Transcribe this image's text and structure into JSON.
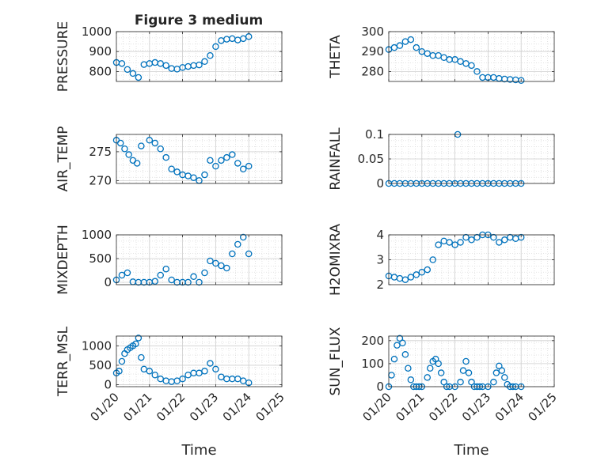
{
  "figure": {
    "title": "Figure 3 medium",
    "marker_color": "#0072BD",
    "x_axis_label": "Time",
    "x_tick_labels": [
      "01/20",
      "01/21",
      "01/22",
      "01/23",
      "01/24",
      "01/25"
    ],
    "grid": "minor dotted + major"
  },
  "chart_data": [
    {
      "type": "scatter",
      "ylabel": "PRESSURE",
      "ylim": [
        750,
        1000
      ],
      "yticks": [
        "800",
        "900",
        "1000"
      ],
      "x": [
        "01/20 00:00",
        "01/20 04:00",
        "01/20 08:00",
        "01/20 12:00",
        "01/20 16:00",
        "01/20 20:00",
        "01/21 00:00",
        "01/21 04:00",
        "01/21 08:00",
        "01/21 12:00",
        "01/21 16:00",
        "01/21 20:00",
        "01/22 00:00",
        "01/22 04:00",
        "01/22 08:00",
        "01/22 12:00",
        "01/22 16:00",
        "01/22 20:00",
        "01/23 00:00",
        "01/23 04:00",
        "01/23 08:00",
        "01/23 12:00",
        "01/23 16:00",
        "01/23 20:00",
        "01/24 00:00"
      ],
      "values": [
        845,
        840,
        810,
        790,
        770,
        835,
        840,
        845,
        840,
        830,
        815,
        812,
        820,
        825,
        830,
        833,
        850,
        880,
        925,
        955,
        962,
        965,
        958,
        965,
        975
      ]
    },
    {
      "type": "scatter",
      "ylabel": "THETA",
      "ylim": [
        275,
        300
      ],
      "yticks": [
        "280",
        "290",
        "300"
      ],
      "x": [
        "01/20 00:00",
        "01/20 04:00",
        "01/20 08:00",
        "01/20 12:00",
        "01/20 16:00",
        "01/20 20:00",
        "01/21 00:00",
        "01/21 04:00",
        "01/21 08:00",
        "01/21 12:00",
        "01/21 16:00",
        "01/21 20:00",
        "01/22 00:00",
        "01/22 04:00",
        "01/22 08:00",
        "01/22 12:00",
        "01/22 16:00",
        "01/22 20:00",
        "01/23 00:00",
        "01/23 04:00",
        "01/23 08:00",
        "01/23 12:00",
        "01/23 16:00",
        "01/23 20:00",
        "01/24 00:00"
      ],
      "values": [
        291,
        292,
        293,
        295,
        296,
        292,
        290,
        289,
        288,
        288,
        287,
        286,
        286,
        285,
        284,
        283,
        280,
        277,
        277,
        277,
        276.5,
        276.2,
        276,
        275.8,
        275.5
      ]
    },
    {
      "type": "scatter",
      "ylabel": "AIR_TEMP",
      "ylim": [
        269.5,
        278
      ],
      "yticks": [
        "270",
        "275"
      ],
      "x": [
        "01/20 00:00",
        "01/20 03:00",
        "01/20 06:00",
        "01/20 09:00",
        "01/20 12:00",
        "01/20 15:00",
        "01/20 18:00",
        "01/21 00:00",
        "01/21 04:00",
        "01/21 08:00",
        "01/21 12:00",
        "01/21 16:00",
        "01/21 20:00",
        "01/22 00:00",
        "01/22 04:00",
        "01/22 08:00",
        "01/22 12:00",
        "01/22 16:00",
        "01/22 20:00",
        "01/23 00:00",
        "01/23 04:00",
        "01/23 08:00",
        "01/23 12:00",
        "01/23 16:00",
        "01/23 20:00",
        "01/24 00:00"
      ],
      "values": [
        277,
        276.5,
        275.5,
        274.5,
        273.5,
        273,
        276,
        277,
        276.5,
        275.5,
        274,
        272,
        271.5,
        271,
        270.8,
        270.5,
        270,
        271,
        273.5,
        272.5,
        273.5,
        274,
        274.5,
        273,
        272,
        272.5
      ]
    },
    {
      "type": "scatter",
      "ylabel": "RAINFALL",
      "ylim": [
        0,
        0.1
      ],
      "yticks": [
        "0",
        "0.05",
        "0.1"
      ],
      "x": [
        "01/20 00:00",
        "01/20 04:00",
        "01/20 08:00",
        "01/20 12:00",
        "01/20 16:00",
        "01/20 20:00",
        "01/21 00:00",
        "01/21 04:00",
        "01/21 08:00",
        "01/21 12:00",
        "01/21 16:00",
        "01/21 20:00",
        "01/22 00:00",
        "01/22 02:00",
        "01/22 04:00",
        "01/22 08:00",
        "01/22 12:00",
        "01/22 16:00",
        "01/22 20:00",
        "01/23 00:00",
        "01/23 04:00",
        "01/23 08:00",
        "01/23 12:00",
        "01/23 16:00",
        "01/23 20:00",
        "01/24 00:00"
      ],
      "values": [
        0,
        0,
        0,
        0,
        0,
        0,
        0,
        0,
        0,
        0,
        0,
        0,
        0,
        0.1,
        0,
        0,
        0,
        0,
        0,
        0,
        0,
        0,
        0,
        0,
        0,
        0
      ]
    },
    {
      "type": "scatter",
      "ylabel": "MIXDEPTH",
      "ylim": [
        -50,
        1000
      ],
      "yticks": [
        "0",
        "500",
        "1000"
      ],
      "x": [
        "01/20 00:00",
        "01/20 04:00",
        "01/20 08:00",
        "01/20 12:00",
        "01/20 16:00",
        "01/20 20:00",
        "01/21 00:00",
        "01/21 04:00",
        "01/21 08:00",
        "01/21 12:00",
        "01/21 16:00",
        "01/21 20:00",
        "01/22 00:00",
        "01/22 04:00",
        "01/22 08:00",
        "01/22 12:00",
        "01/22 16:00",
        "01/22 20:00",
        "01/23 00:00",
        "01/23 04:00",
        "01/23 08:00",
        "01/23 12:00",
        "01/23 16:00",
        "01/23 20:00",
        "01/24 00:00"
      ],
      "values": [
        50,
        150,
        200,
        10,
        0,
        0,
        0,
        20,
        150,
        280,
        50,
        0,
        0,
        0,
        120,
        0,
        200,
        450,
        400,
        350,
        300,
        600,
        800,
        950,
        600
      ]
    },
    {
      "type": "scatter",
      "ylabel": "H2OMIXRA",
      "ylim": [
        2,
        4
      ],
      "yticks": [
        "2",
        "3",
        "4"
      ],
      "x": [
        "01/20 00:00",
        "01/20 04:00",
        "01/20 08:00",
        "01/20 12:00",
        "01/20 16:00",
        "01/20 20:00",
        "01/21 00:00",
        "01/21 04:00",
        "01/21 08:00",
        "01/21 12:00",
        "01/21 16:00",
        "01/21 20:00",
        "01/22 00:00",
        "01/22 04:00",
        "01/22 08:00",
        "01/22 12:00",
        "01/22 16:00",
        "01/22 20:00",
        "01/23 00:00",
        "01/23 04:00",
        "01/23 08:00",
        "01/23 12:00",
        "01/23 16:00",
        "01/23 20:00",
        "01/24 00:00"
      ],
      "values": [
        2.35,
        2.3,
        2.25,
        2.2,
        2.3,
        2.4,
        2.5,
        2.6,
        3,
        3.6,
        3.75,
        3.7,
        3.6,
        3.7,
        3.9,
        3.8,
        3.9,
        4,
        4,
        3.9,
        3.7,
        3.8,
        3.9,
        3.85,
        3.9
      ]
    },
    {
      "type": "scatter",
      "ylabel": "TERR_MSL",
      "ylim": [
        -50,
        1250
      ],
      "yticks": [
        "0",
        "500",
        "1000"
      ],
      "x": [
        "01/20 00:00",
        "01/20 02:00",
        "01/20 04:00",
        "01/20 06:00",
        "01/20 08:00",
        "01/20 10:00",
        "01/20 12:00",
        "01/20 14:00",
        "01/20 16:00",
        "01/20 18:00",
        "01/20 20:00",
        "01/21 00:00",
        "01/21 04:00",
        "01/21 08:00",
        "01/21 12:00",
        "01/21 16:00",
        "01/21 20:00",
        "01/22 00:00",
        "01/22 04:00",
        "01/22 08:00",
        "01/22 12:00",
        "01/22 16:00",
        "01/22 20:00",
        "01/23 00:00",
        "01/23 04:00",
        "01/23 08:00",
        "01/23 12:00",
        "01/23 16:00",
        "01/23 20:00",
        "01/24 00:00"
      ],
      "values": [
        300,
        350,
        600,
        800,
        900,
        950,
        1000,
        1050,
        1200,
        700,
        400,
        350,
        250,
        150,
        100,
        80,
        100,
        150,
        250,
        300,
        300,
        350,
        550,
        400,
        200,
        150,
        150,
        150,
        100,
        50
      ]
    },
    {
      "type": "scatter",
      "ylabel": "SUN_FLUX",
      "ylim": [
        0,
        220
      ],
      "yticks": [
        "0",
        "100",
        "200"
      ],
      "x": [
        "01/20 00:00",
        "01/20 02:00",
        "01/20 04:00",
        "01/20 06:00",
        "01/20 08:00",
        "01/20 10:00",
        "01/20 12:00",
        "01/20 14:00",
        "01/20 16:00",
        "01/20 18:00",
        "01/20 20:00",
        "01/20 22:00",
        "01/21 00:00",
        "01/21 04:00",
        "01/21 06:00",
        "01/21 08:00",
        "01/21 10:00",
        "01/21 12:00",
        "01/21 14:00",
        "01/21 16:00",
        "01/21 18:00",
        "01/21 20:00",
        "01/22 00:00",
        "01/22 04:00",
        "01/22 06:00",
        "01/22 08:00",
        "01/22 10:00",
        "01/22 12:00",
        "01/22 14:00",
        "01/22 16:00",
        "01/22 18:00",
        "01/22 20:00",
        "01/23 00:00",
        "01/23 04:00",
        "01/23 06:00",
        "01/23 08:00",
        "01/23 10:00",
        "01/23 12:00",
        "01/23 14:00",
        "01/23 16:00",
        "01/23 18:00",
        "01/23 20:00",
        "01/24 00:00"
      ],
      "values": [
        0,
        50,
        120,
        180,
        210,
        190,
        140,
        80,
        30,
        0,
        0,
        0,
        0,
        40,
        80,
        110,
        120,
        100,
        60,
        20,
        0,
        0,
        0,
        20,
        70,
        110,
        60,
        20,
        0,
        0,
        0,
        0,
        0,
        20,
        60,
        90,
        70,
        40,
        10,
        0,
        0,
        0,
        0
      ]
    }
  ]
}
